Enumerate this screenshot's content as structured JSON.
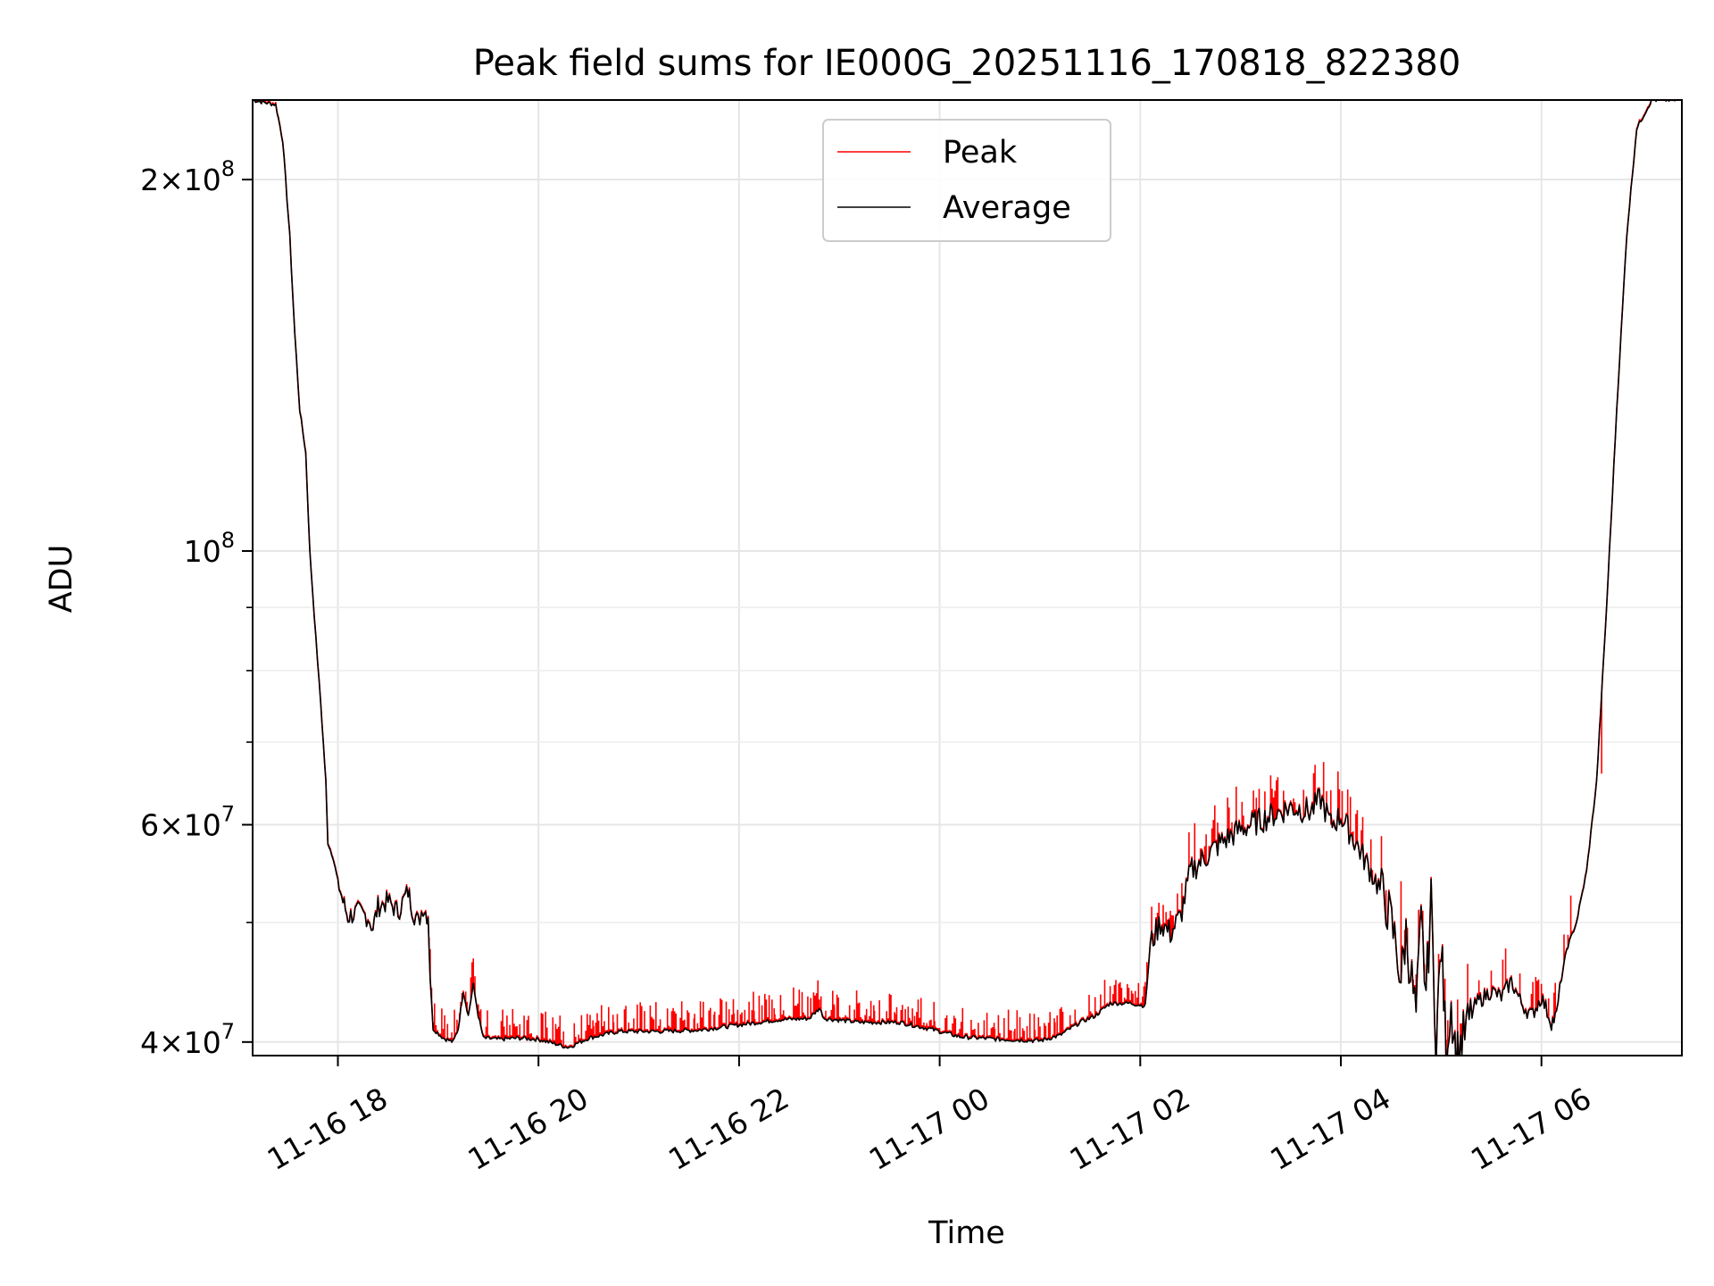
{
  "chart_data": {
    "type": "line",
    "title": "Peak field sums for IE000G_20251116_170818_822380",
    "xlabel": "Time",
    "ylabel": "ADU",
    "yscale": "log",
    "xlim_hours": [
      -0.85,
      13.4
    ],
    "ylim": [
      39000000,
      232000000
    ],
    "grid": true,
    "legend": {
      "location": "top-center",
      "entries": [
        "Peak",
        "Average"
      ]
    },
    "x_ticks": [
      {
        "hour": 0,
        "label": "11-16 18"
      },
      {
        "hour": 2,
        "label": "11-16 20"
      },
      {
        "hour": 4,
        "label": "11-16 22"
      },
      {
        "hour": 6,
        "label": "11-17 00"
      },
      {
        "hour": 8,
        "label": "11-17 02"
      },
      {
        "hour": 10,
        "label": "11-17 04"
      },
      {
        "hour": 12,
        "label": "11-17 06"
      }
    ],
    "y_ticks": [
      {
        "value": 40000000,
        "mantissa": "4",
        "exp": "7"
      },
      {
        "value": 60000000,
        "mantissa": "6",
        "exp": "7"
      },
      {
        "value": 100000000,
        "mantissa": "",
        "exp": "8"
      },
      {
        "value": 200000000,
        "mantissa": "2",
        "exp": "8"
      }
    ],
    "y_minor_ticks": [
      50000000,
      70000000,
      80000000,
      90000000
    ],
    "x_hours_note": "hours relative to 2025-11-16 18:00",
    "series": [
      {
        "name": "Average",
        "color": "#000000",
        "points": [
          [
            -0.85,
            232000000
          ],
          [
            -0.62,
            230000000
          ],
          [
            -0.55,
            215000000
          ],
          [
            -0.48,
            180000000
          ],
          [
            -0.43,
            150000000
          ],
          [
            -0.38,
            130000000
          ],
          [
            -0.32,
            120000000
          ],
          [
            -0.28,
            100000000
          ],
          [
            -0.22,
            85000000
          ],
          [
            -0.17,
            75000000
          ],
          [
            -0.12,
            65000000
          ],
          [
            -0.1,
            58000000
          ],
          [
            -0.05,
            56500000
          ],
          [
            0.0,
            54000000
          ],
          [
            0.05,
            52000000
          ],
          [
            0.1,
            50500000
          ],
          [
            0.2,
            51000000
          ],
          [
            0.3,
            50500000
          ],
          [
            0.35,
            49500000
          ],
          [
            0.4,
            51500000
          ],
          [
            0.5,
            52000000
          ],
          [
            0.6,
            51000000
          ],
          [
            0.7,
            53000000
          ],
          [
            0.75,
            51000000
          ],
          [
            0.8,
            50000000
          ],
          [
            0.85,
            51500000
          ],
          [
            0.9,
            50500000
          ],
          [
            0.92,
            45000000
          ],
          [
            0.95,
            41000000
          ],
          [
            1.05,
            40300000
          ],
          [
            1.15,
            40000000
          ],
          [
            1.2,
            41000000
          ],
          [
            1.25,
            44000000
          ],
          [
            1.3,
            42000000
          ],
          [
            1.35,
            44500000
          ],
          [
            1.4,
            42000000
          ],
          [
            1.45,
            40300000
          ],
          [
            1.6,
            40200000
          ],
          [
            1.8,
            40300000
          ],
          [
            2.0,
            40200000
          ],
          [
            2.1,
            40000000
          ],
          [
            2.3,
            39600000
          ],
          [
            2.5,
            40300000
          ],
          [
            2.8,
            40800000
          ],
          [
            3.2,
            40800000
          ],
          [
            3.6,
            40900000
          ],
          [
            4.0,
            41300000
          ],
          [
            4.4,
            41700000
          ],
          [
            4.7,
            41800000
          ],
          [
            4.8,
            42600000
          ],
          [
            4.85,
            41800000
          ],
          [
            5.2,
            41500000
          ],
          [
            5.6,
            41500000
          ],
          [
            5.9,
            41000000
          ],
          [
            6.2,
            40400000
          ],
          [
            6.6,
            40200000
          ],
          [
            7.0,
            40100000
          ],
          [
            7.2,
            40500000
          ],
          [
            7.4,
            41500000
          ],
          [
            7.55,
            42000000
          ],
          [
            7.7,
            43000000
          ],
          [
            7.9,
            43000000
          ],
          [
            8.05,
            42800000
          ],
          [
            8.1,
            48000000
          ],
          [
            8.2,
            50000000
          ],
          [
            8.3,
            49000000
          ],
          [
            8.4,
            50500000
          ],
          [
            8.5,
            55000000
          ],
          [
            8.6,
            56000000
          ],
          [
            8.8,
            58000000
          ],
          [
            9.0,
            59500000
          ],
          [
            9.3,
            61000000
          ],
          [
            9.5,
            62000000
          ],
          [
            9.7,
            61500000
          ],
          [
            9.8,
            63000000
          ],
          [
            9.9,
            60000000
          ],
          [
            10.0,
            61000000
          ],
          [
            10.15,
            58000000
          ],
          [
            10.3,
            55000000
          ],
          [
            10.45,
            52000000
          ],
          [
            10.55,
            48000000
          ],
          [
            10.6,
            45000000
          ],
          [
            10.65,
            49000000
          ],
          [
            10.75,
            42000000
          ],
          [
            10.8,
            50000000
          ],
          [
            10.85,
            44000000
          ],
          [
            10.9,
            52000000
          ],
          [
            10.95,
            40000000
          ],
          [
            11.0,
            48000000
          ],
          [
            11.05,
            39500000
          ],
          [
            11.1,
            43000000
          ],
          [
            11.15,
            39000000
          ],
          [
            11.25,
            41000000
          ],
          [
            11.35,
            43000000
          ],
          [
            11.5,
            44000000
          ],
          [
            11.6,
            43500000
          ],
          [
            11.7,
            44800000
          ],
          [
            11.8,
            43000000
          ],
          [
            11.9,
            42000000
          ],
          [
            12.0,
            43500000
          ],
          [
            12.1,
            41500000
          ],
          [
            12.15,
            42000000
          ],
          [
            12.2,
            45000000
          ],
          [
            12.25,
            47500000
          ],
          [
            12.35,
            50000000
          ],
          [
            12.45,
            55000000
          ],
          [
            12.55,
            65000000
          ],
          [
            12.65,
            90000000
          ],
          [
            12.75,
            130000000
          ],
          [
            12.85,
            180000000
          ],
          [
            12.95,
            220000000
          ],
          [
            13.1,
            232000000
          ],
          [
            13.4,
            232000000
          ]
        ]
      },
      {
        "name": "Peak",
        "color": "#ff0000",
        "note": "tracks Average with frequent upward spikes",
        "spikes": [
          [
            0.95,
            41500000
          ],
          [
            1.05,
            41000000
          ],
          [
            2.25,
            40800000
          ],
          [
            2.55,
            41200000
          ],
          [
            2.75,
            41500000
          ],
          [
            2.95,
            41800000
          ],
          [
            3.15,
            41700000
          ],
          [
            3.35,
            41800000
          ],
          [
            3.55,
            41800000
          ],
          [
            3.75,
            42100000
          ],
          [
            3.95,
            42200000
          ],
          [
            4.15,
            42400000
          ],
          [
            4.35,
            42600000
          ],
          [
            4.55,
            42800000
          ],
          [
            4.75,
            43200000
          ],
          [
            4.95,
            42700000
          ],
          [
            5.15,
            42500000
          ],
          [
            5.35,
            42400000
          ],
          [
            5.55,
            42300000
          ],
          [
            5.75,
            42000000
          ],
          [
            5.95,
            41600000
          ],
          [
            6.15,
            41200000
          ],
          [
            6.35,
            41000000
          ],
          [
            6.55,
            41000000
          ],
          [
            6.75,
            41000000
          ],
          [
            6.95,
            40900000
          ],
          [
            7.15,
            41500000
          ],
          [
            7.35,
            42500000
          ],
          [
            7.55,
            43500000
          ],
          [
            7.75,
            44000000
          ],
          [
            7.95,
            44000000
          ],
          [
            9.9,
            64000000
          ],
          [
            10.6,
            54000000
          ],
          [
            12.6,
            66000000
          ]
        ]
      }
    ]
  }
}
